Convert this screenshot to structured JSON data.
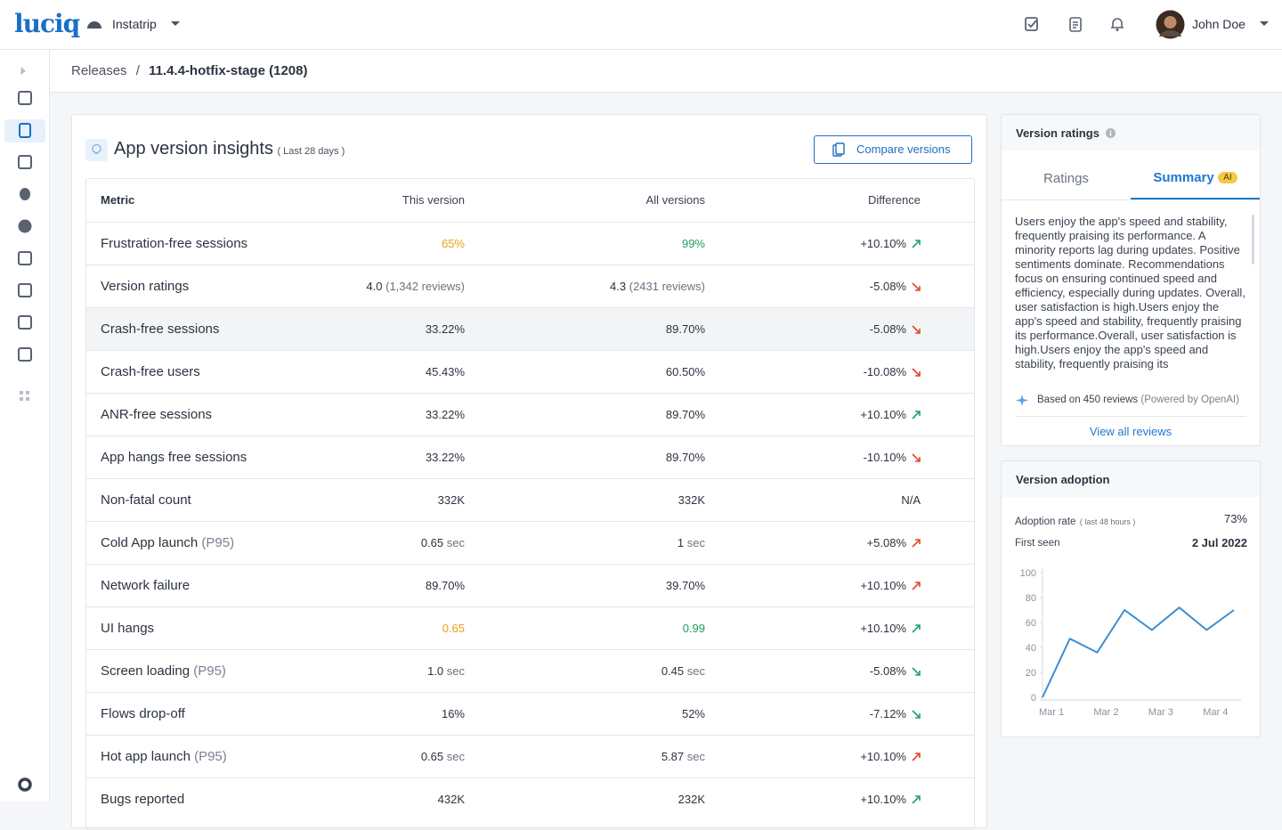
{
  "header": {
    "logo": "luciq",
    "app": "Instatrip",
    "user": "John Doe"
  },
  "breadcrumb": {
    "parent": "Releases",
    "separator": "/",
    "current": "11.4.4-hotfix-stage (1208)"
  },
  "insights": {
    "title": "App version insights",
    "period": "( Last 28 days )",
    "compare_button": "Compare versions",
    "columns": [
      "Metric",
      "This version",
      "All versions",
      "Difference"
    ],
    "rows": [
      {
        "metric": "Frustration-free sessions",
        "this_value": "65%",
        "this_color": "#e8a317",
        "all_value": "99%",
        "all_color": "#1e9e5a",
        "diff": "+10.10%",
        "trend": "up",
        "trend_color": "#22a06b"
      },
      {
        "metric": "Version ratings",
        "this_value": "4.0",
        "this_note": "(1,342 reviews)",
        "all_value": "4.3",
        "all_note": "(2431 reviews)",
        "diff": "-5.08%",
        "trend": "down",
        "trend_color": "#e0472b"
      },
      {
        "metric": "Crash-free sessions",
        "this_value": "33.22%",
        "all_value": "89.70%",
        "diff": "-5.08%",
        "trend": "down",
        "trend_color": "#e0472b",
        "highlighted": true
      },
      {
        "metric": "Crash-free users",
        "this_value": "45.43%",
        "all_value": "60.50%",
        "diff": "-10.08%",
        "trend": "down",
        "trend_color": "#e0472b"
      },
      {
        "metric": "ANR-free sessions",
        "this_value": "33.22%",
        "all_value": "89.70%",
        "diff": "+10.10%",
        "trend": "up",
        "trend_color": "#22a06b"
      },
      {
        "metric": "App hangs free sessions",
        "this_value": "33.22%",
        "all_value": "89.70%",
        "diff": "-10.10%",
        "trend": "down",
        "trend_color": "#e0472b"
      },
      {
        "metric": "Non-fatal count",
        "this_value": "332K",
        "all_value": "332K",
        "diff": "N/A"
      },
      {
        "metric": "Cold App launch",
        "metric_suffix": "(P95)",
        "this_value": "0.65",
        "this_note": "sec",
        "all_value": "1",
        "all_note": "sec",
        "diff": "+5.08%",
        "trend": "up",
        "trend_color": "#e0472b"
      },
      {
        "metric": "Network failure",
        "this_value": "89.70%",
        "all_value": "39.70%",
        "diff": "+10.10%",
        "trend": "up",
        "trend_color": "#e0472b"
      },
      {
        "metric": "UI hangs",
        "this_value": "0.65",
        "this_color": "#e8a317",
        "all_value": "0.99",
        "all_color": "#1e9e5a",
        "diff": "+10.10%",
        "trend": "up",
        "trend_color": "#22a06b"
      },
      {
        "metric": "Screen loading",
        "metric_suffix": "(P95)",
        "this_value": "1.0",
        "this_note": "sec",
        "all_value": "0.45",
        "all_note": "sec",
        "diff": "-5.08%",
        "trend": "down",
        "trend_color": "#22a06b"
      },
      {
        "metric": "Flows drop-off",
        "this_value": "16%",
        "all_value": "52%",
        "diff": "-7.12%",
        "trend": "down",
        "trend_color": "#22a06b"
      },
      {
        "metric": "Hot app launch",
        "metric_suffix": "(P95)",
        "this_value": "0.65",
        "this_note": "sec",
        "all_value": "5.87",
        "all_note": "sec",
        "diff": "+10.10%",
        "trend": "up",
        "trend_color": "#e0472b"
      },
      {
        "metric": "Bugs reported",
        "this_value": "432K",
        "all_value": "232K",
        "diff": "+10.10%",
        "trend": "up",
        "trend_color": "#22a06b"
      }
    ]
  },
  "ratings": {
    "title": "Version ratings",
    "tabs": [
      "Ratings",
      "Summary"
    ],
    "badge": "AI",
    "summary": "Users enjoy the app's speed and stability, frequently praising its performance. A minority reports lag during updates. Positive sentiments dominate. Recommendations focus on ensuring continued speed and efficiency, especially during updates. Overall, user satisfaction is high.Users enjoy the app's speed and stability, frequently praising its performance.Overall, user satisfaction is high.Users enjoy the app's speed and stability, frequently praising its",
    "based_on": "Based on 450 reviews",
    "powered_by": "(Powered by OpenAI)",
    "link": "View all reviews"
  },
  "adoption": {
    "title": "Version adoption",
    "rate_label": "Adoption rate",
    "rate_period": "( last 48 hours )",
    "rate_value": "73%",
    "first_seen_label": "First seen",
    "first_seen_value": "2 Jul 2022"
  },
  "chart_data": {
    "type": "line",
    "categories": [
      "Mar 1",
      null,
      "Mar 2",
      null,
      "Mar 3",
      null,
      "Mar 4",
      null
    ],
    "values": [
      0,
      47,
      36,
      70,
      54,
      72,
      54,
      70
    ],
    "color": "#3b8fd4",
    "ylim": [
      0,
      100
    ],
    "yticks": [
      0,
      20,
      40,
      60,
      80,
      100
    ]
  }
}
